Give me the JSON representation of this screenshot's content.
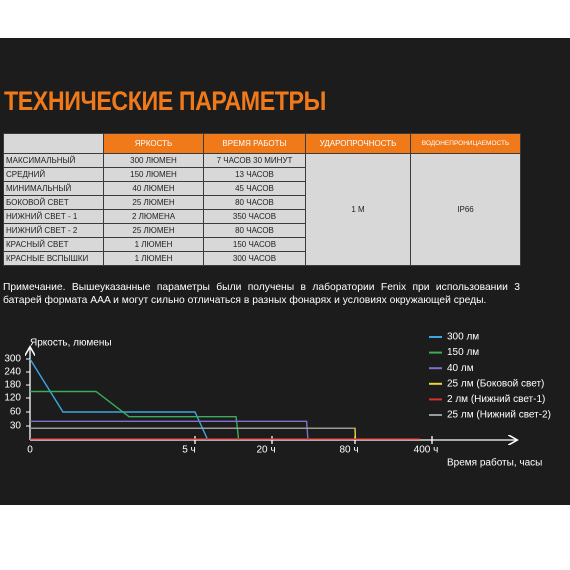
{
  "header": {
    "title": "ТЕХНИЧЕСКИЕ ПАРАМЕТРЫ"
  },
  "table": {
    "columns": [
      "ЯРКОСТЬ",
      "ВРЕМЯ РАБОТЫ",
      "УДАРОПРОЧНОСТЬ",
      "ВОДОНЕПРОНИЦАЕМОСТЬ"
    ],
    "rows": [
      [
        "МАКСИМАЛЬНЫЙ",
        "300 ЛЮМЕН",
        "7 ЧАСОВ 30 МИНУТ"
      ],
      [
        "СРЕДНИЙ",
        "150 ЛЮМЕН",
        "13 ЧАСОВ"
      ],
      [
        "МИНИМАЛЬНЫЙ",
        "40 ЛЮМЕН",
        "45 ЧАСОВ"
      ],
      [
        "БОКОВОЙ СВЕТ",
        "25 ЛЮМЕН",
        "80 ЧАСОВ"
      ],
      [
        "НИЖНИЙ СВЕТ - 1",
        "2 ЛЮМЕНА",
        "350 ЧАСОВ"
      ],
      [
        "НИЖНИЙ СВЕТ - 2",
        "25 ЛЮМЕН",
        "80 ЧАСОВ"
      ],
      [
        "КРАСНЫЙ СВЕТ",
        "1 ЛЮМЕН",
        "150 ЧАСОВ"
      ],
      [
        "КРАСНЫЕ ВСПЫШКИ",
        "1 ЛЮМЕН",
        "300 ЧАСОВ"
      ]
    ],
    "impact": "1 М",
    "waterproof": "IP66"
  },
  "note": "Примечание. Вышеуказанные параметры были получены в лаборатории Fenix при использовании 3 батарей формата AAA и могут сильно отличаться в разных фонарях и условиях окружающей среды.",
  "chart_data": {
    "type": "line",
    "y_label": "Яркость, люмены",
    "x_label": "Время работы, часы",
    "xlim": [
      0,
      400
    ],
    "xticks": [
      0,
      {
        "value": 5,
        "label": "5 ч"
      },
      {
        "value": 20,
        "label": "20 ч"
      },
      {
        "value": 80,
        "label": "80 ч"
      },
      {
        "value": 400,
        "label": "400 ч"
      }
    ],
    "ylim": [
      0,
      300
    ],
    "yticks": [
      30,
      60,
      120,
      180,
      240,
      300
    ],
    "series": [
      {
        "name": "300 лм",
        "color": "#3da5e0",
        "x": [
          0,
          1,
          5,
          7.5
        ],
        "values": [
          300,
          60,
          60,
          0
        ]
      },
      {
        "name": "150 лм",
        "color": "#3cab5a",
        "x": [
          0,
          2,
          3,
          13,
          13.5
        ],
        "values": [
          150,
          150,
          50,
          50,
          0
        ]
      },
      {
        "name": "40 лм",
        "color": "#8070d0",
        "x": [
          0,
          45,
          46
        ],
        "values": [
          40,
          40,
          0
        ]
      },
      {
        "name": "25 лм (Боковой свет)",
        "color": "#e6d83a",
        "x": [
          0,
          80,
          82
        ],
        "values": [
          25,
          25,
          0
        ]
      },
      {
        "name": "2 лм (Нижний свет-1)",
        "color": "#d83030",
        "x": [
          0,
          350
        ],
        "values": [
          2,
          2
        ]
      },
      {
        "name": "25 лм (Нижний свет-2)",
        "color": "#9a9a9a",
        "x": [
          0,
          80
        ],
        "values": [
          25,
          25
        ]
      }
    ]
  }
}
